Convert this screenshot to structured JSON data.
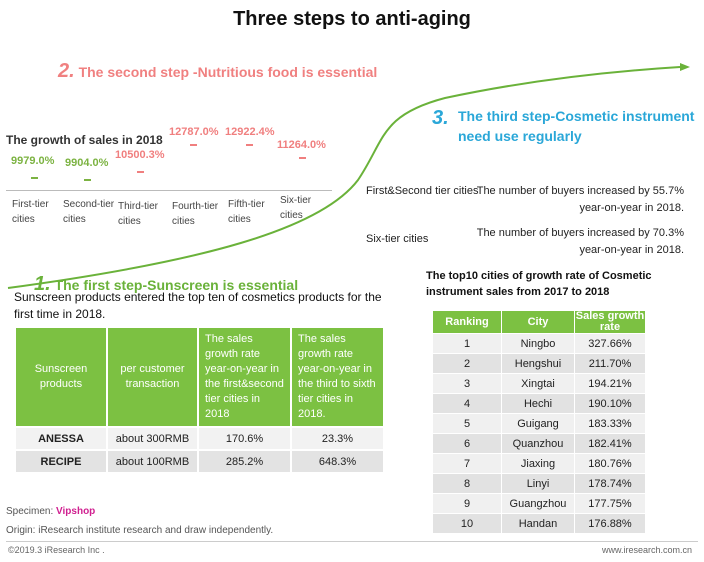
{
  "title": "Three steps to anti-aging",
  "step2": {
    "num": "2.",
    "text": "The second step -Nutritious food is essential"
  },
  "step3": {
    "num": "3.",
    "text": "The third step-Cosmetic instrument need use regularly"
  },
  "step1": {
    "num": "1.",
    "text": "The first step-Sunscreen is essential"
  },
  "growth": {
    "title": "The growth of sales in 2018",
    "values": [
      "9979.0%",
      "9904.0%",
      "10500.3%",
      "12787.0%",
      "12922.4%",
      "11264.0%"
    ],
    "cities": [
      "First-tier cities",
      "Second-tier cities",
      "Third-tier cities",
      "Fourth-tier cities",
      "Fifth-tier cities",
      "Six-tier cities"
    ],
    "colors": {
      "green": "#7cb342",
      "pink": "#f07f7f"
    }
  },
  "tiers": [
    {
      "label": "First&Second tier cities",
      "desc": "The number of buyers increased by 55.7% year-on-year in 2018."
    },
    {
      "label": "Six-tier cities",
      "desc": "The number of buyers increased by 70.3% year-on-year in 2018."
    }
  ],
  "sunscreen": {
    "intro": "Sunscreen products entered the top ten of cosmetics products for the first time in 2018.",
    "headers": [
      "Sunscreen products",
      "per customer transaction",
      "The sales growth rate year-on-year in the first&second tier cities in 2018",
      "The sales growth rate year-on-year in the third to sixth tier cities in 2018."
    ],
    "rows": [
      [
        "ANESSA",
        "about 300RMB",
        "170.6%",
        "23.3%"
      ],
      [
        "RECIPE",
        "about 100RMB",
        "285.2%",
        "648.3%"
      ]
    ]
  },
  "top10": {
    "title": "The top10 cities of growth rate of Cosmetic instrument sales from 2017 to 2018",
    "headers": [
      "Ranking",
      "City",
      "Sales growth rate"
    ],
    "rows": [
      [
        "1",
        "Ningbo",
        "327.66%"
      ],
      [
        "2",
        "Hengshui",
        "211.70%"
      ],
      [
        "3",
        "Xingtai",
        "194.21%"
      ],
      [
        "4",
        "Hechi",
        "190.10%"
      ],
      [
        "5",
        "Guigang",
        "183.33%"
      ],
      [
        "6",
        "Quanzhou",
        "182.41%"
      ],
      [
        "7",
        "Jiaxing",
        "180.76%"
      ],
      [
        "8",
        "Linyi",
        "178.74%"
      ],
      [
        "9",
        "Guangzhou",
        "177.75%"
      ],
      [
        "10",
        "Handan",
        "176.88%"
      ]
    ]
  },
  "specimen": {
    "label": "Specimen:",
    "value": "Vipshop"
  },
  "origin": "Origin: iResearch institute research and draw independently.",
  "copyright": "©2019.3 iResearch Inc .",
  "site": "www.iresearch.com.cn",
  "accent": {
    "green": "#7cc142",
    "curve": "#6ab23a",
    "step2": "#f08080",
    "step3": "#2aa7d8"
  }
}
